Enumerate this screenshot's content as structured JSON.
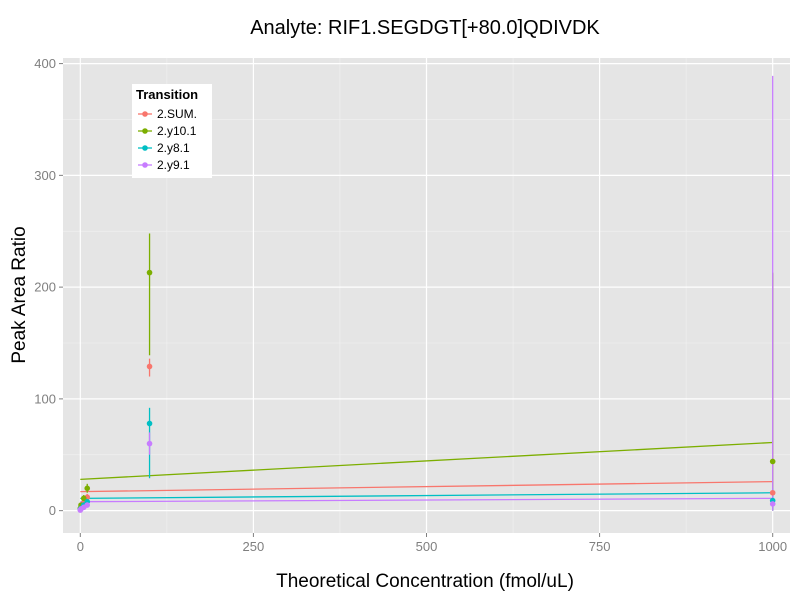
{
  "chart_data": {
    "type": "scatter",
    "title": "Analyte: RIF1.SEGDGT[+80.0]QDIVDK",
    "xlabel": "Theoretical Concentration (fmol/uL)",
    "ylabel": "Peak Area Ratio",
    "xlim": [
      -25,
      1025
    ],
    "ylim": [
      -20,
      405
    ],
    "x_ticks": [
      0,
      250,
      500,
      750,
      1000
    ],
    "y_ticks": [
      0,
      100,
      200,
      300,
      400
    ],
    "grid": true,
    "legend": {
      "title": "Transition",
      "position": "top-left"
    },
    "series": [
      {
        "name": "2.SUM.",
        "color": "#F8766D",
        "points": [
          {
            "x": 0,
            "y": 1,
            "err": [
              0,
              2
            ]
          },
          {
            "x": 1,
            "y": 3,
            "err": [
              2,
              4
            ]
          },
          {
            "x": 5,
            "y": 7,
            "err": [
              5,
              9
            ]
          },
          {
            "x": 10,
            "y": 12,
            "err": [
              9,
              15
            ]
          },
          {
            "x": 100,
            "y": 129,
            "err": [
              120,
              136
            ]
          },
          {
            "x": 1000,
            "y": 16,
            "err": [
              0,
              212
            ]
          }
        ],
        "fit": [
          [
            0,
            17
          ],
          [
            1000,
            26
          ]
        ]
      },
      {
        "name": "2.y10.1",
        "color": "#7CAE00",
        "points": [
          {
            "x": 0,
            "y": 2,
            "err": [
              0,
              4
            ]
          },
          {
            "x": 1,
            "y": 5,
            "err": [
              3,
              7
            ]
          },
          {
            "x": 5,
            "y": 11,
            "err": [
              8,
              14
            ]
          },
          {
            "x": 10,
            "y": 20,
            "err": [
              16,
              24
            ]
          },
          {
            "x": 100,
            "y": 213,
            "err": [
              139,
              248
            ]
          },
          {
            "x": 1000,
            "y": 44,
            "err": [
              0,
              213
            ]
          }
        ],
        "fit": [
          [
            0,
            28
          ],
          [
            1000,
            61
          ]
        ]
      },
      {
        "name": "2.y8.1",
        "color": "#00BFC4",
        "points": [
          {
            "x": 0,
            "y": 1,
            "err": [
              0,
              2
            ]
          },
          {
            "x": 1,
            "y": 2,
            "err": [
              1,
              3
            ]
          },
          {
            "x": 5,
            "y": 5,
            "err": [
              3,
              7
            ]
          },
          {
            "x": 10,
            "y": 8,
            "err": [
              6,
              10
            ]
          },
          {
            "x": 100,
            "y": 78,
            "err": [
              29,
              92
            ]
          },
          {
            "x": 1000,
            "y": 9,
            "err": [
              0,
              20
            ]
          }
        ],
        "fit": [
          [
            0,
            11
          ],
          [
            1000,
            16
          ]
        ]
      },
      {
        "name": "2.y9.1",
        "color": "#C77CFF",
        "points": [
          {
            "x": 0,
            "y": 0.5,
            "err": [
              0,
              1
            ]
          },
          {
            "x": 1,
            "y": 1.5,
            "err": [
              0.5,
              2.5
            ]
          },
          {
            "x": 5,
            "y": 3,
            "err": [
              2,
              4
            ]
          },
          {
            "x": 10,
            "y": 5,
            "err": [
              3,
              7
            ]
          },
          {
            "x": 100,
            "y": 60,
            "err": [
              50,
              70
            ]
          },
          {
            "x": 1000,
            "y": 6,
            "err": [
              0,
              389
            ]
          }
        ],
        "fit": [
          [
            0,
            8
          ],
          [
            1000,
            11
          ]
        ]
      }
    ]
  }
}
